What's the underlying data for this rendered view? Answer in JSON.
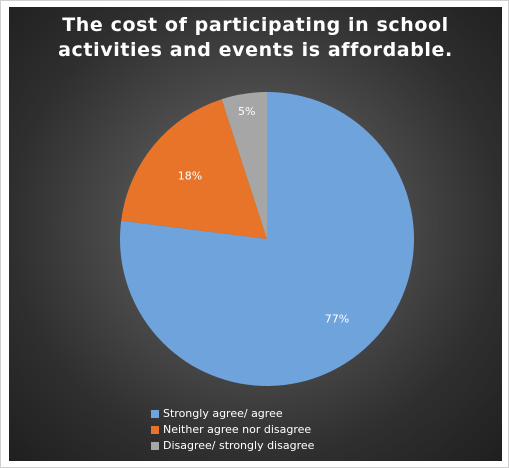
{
  "chart_data": {
    "type": "pie",
    "title_lines": [
      "The cost of participating in school",
      "activities and events is affordable."
    ],
    "slices": [
      {
        "label": "Strongly agree/ agree",
        "value": 77,
        "data_label": "77%",
        "color": "#6fa3dc"
      },
      {
        "label": "Neither agree nor disagree",
        "value": 18,
        "data_label": "18%",
        "color": "#e8742a"
      },
      {
        "label": "Disagree/ strongly disagree",
        "value": 5,
        "data_label": "5%",
        "color": "#a6a6a6"
      }
    ],
    "legend_position": "bottom"
  }
}
